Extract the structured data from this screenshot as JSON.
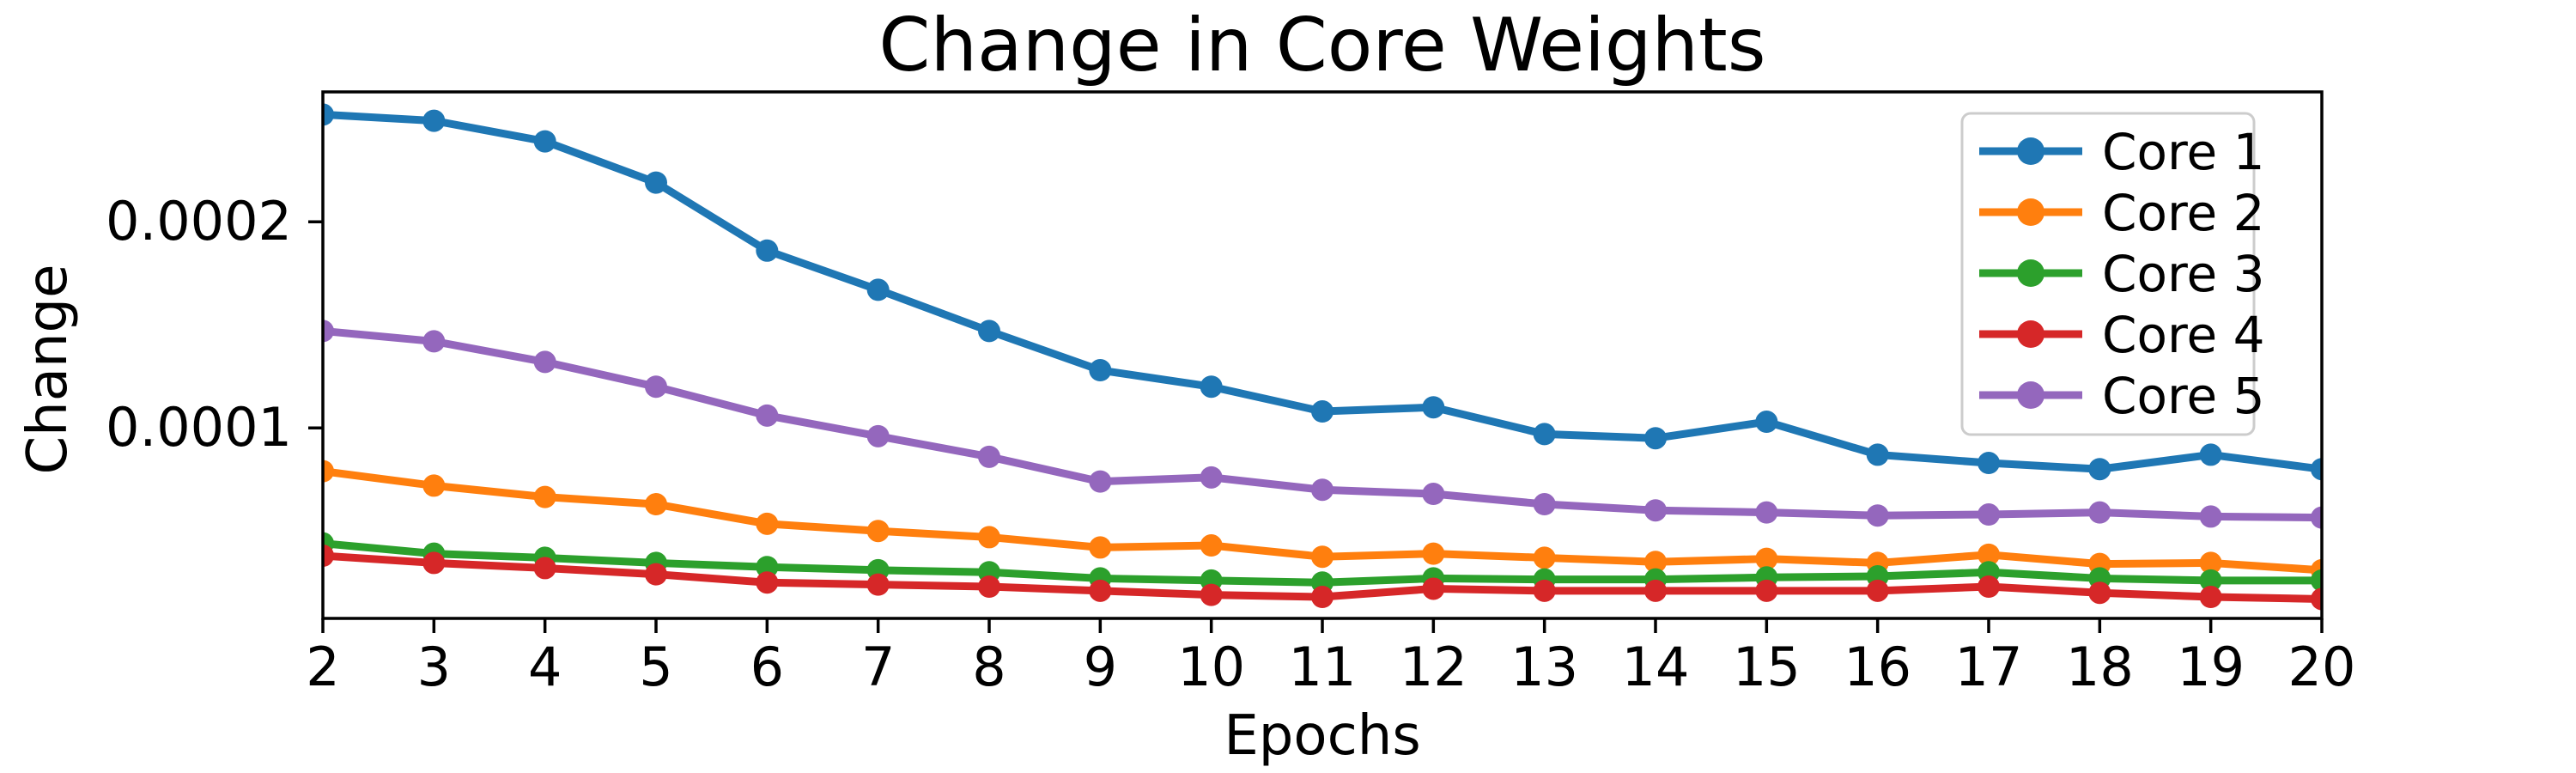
{
  "figure": {
    "background_color": "#ffffff",
    "axis_color": "#000000"
  },
  "chart_data": {
    "type": "line",
    "title": "Change in Core Weights",
    "xlabel": "Epochs",
    "ylabel": "Change",
    "grid": false,
    "legend_position": "upper right",
    "xlim": [
      2,
      20
    ],
    "ylim": [
      7.6e-06,
      0.000263
    ],
    "x": [
      2,
      3,
      4,
      5,
      6,
      7,
      8,
      9,
      10,
      11,
      12,
      13,
      14,
      15,
      16,
      17,
      18,
      19,
      20
    ],
    "xtick_labels": [
      "2",
      "3",
      "4",
      "5",
      "6",
      "7",
      "8",
      "9",
      "10",
      "11",
      "12",
      "13",
      "14",
      "15",
      "16",
      "17",
      "18",
      "19",
      "20"
    ],
    "yticks": [
      {
        "value": 0.0001,
        "label": "0.0001"
      },
      {
        "value": 0.0002,
        "label": "0.0002"
      }
    ],
    "series": [
      {
        "name": "Core 1",
        "color": "#1f77b4",
        "marker": "circle",
        "values": [
          0.000252,
          0.000249,
          0.000239,
          0.000219,
          0.000186,
          0.000167,
          0.000147,
          0.000128,
          0.00012,
          0.000108,
          0.00011,
          9.7e-05,
          9.5e-05,
          0.000103,
          8.7e-05,
          8.3e-05,
          8e-05,
          8.7e-05,
          8e-05
        ]
      },
      {
        "name": "Core 2",
        "color": "#ff7f0e",
        "marker": "circle",
        "values": [
          7.9e-05,
          7.2e-05,
          6.65e-05,
          6.3e-05,
          5.35e-05,
          5e-05,
          4.7e-05,
          4.2e-05,
          4.3e-05,
          3.75e-05,
          3.9e-05,
          3.7e-05,
          3.5e-05,
          3.65e-05,
          3.45e-05,
          3.85e-05,
          3.4e-05,
          3.45e-05,
          3.1e-05
        ]
      },
      {
        "name": "Core 3",
        "color": "#2ca02c",
        "marker": "circle",
        "values": [
          4.4e-05,
          3.9e-05,
          3.7e-05,
          3.45e-05,
          3.25e-05,
          3.1e-05,
          3e-05,
          2.7e-05,
          2.6e-05,
          2.5e-05,
          2.7e-05,
          2.65e-05,
          2.65e-05,
          2.75e-05,
          2.8e-05,
          3e-05,
          2.7e-05,
          2.6e-05,
          2.6e-05
        ]
      },
      {
        "name": "Core 4",
        "color": "#d62728",
        "marker": "circle",
        "values": [
          3.8e-05,
          3.45e-05,
          3.2e-05,
          2.9e-05,
          2.5e-05,
          2.4e-05,
          2.3e-05,
          2.1e-05,
          1.9e-05,
          1.8e-05,
          2.2e-05,
          2.1e-05,
          2.1e-05,
          2.1e-05,
          2.1e-05,
          2.3e-05,
          2e-05,
          1.8e-05,
          1.7e-05
        ]
      },
      {
        "name": "Core 5",
        "color": "#9467bd",
        "marker": "circle",
        "values": [
          0.000147,
          0.000142,
          0.000132,
          0.00012,
          0.000106,
          9.6e-05,
          8.6e-05,
          7.4e-05,
          7.6e-05,
          7e-05,
          6.8e-05,
          6.3e-05,
          6e-05,
          5.9e-05,
          5.75e-05,
          5.8e-05,
          5.9e-05,
          5.7e-05,
          5.65e-05
        ]
      }
    ],
    "legend_labels": [
      "Core 1",
      "Core 2",
      "Core 3",
      "Core 4",
      "Core 5"
    ]
  }
}
